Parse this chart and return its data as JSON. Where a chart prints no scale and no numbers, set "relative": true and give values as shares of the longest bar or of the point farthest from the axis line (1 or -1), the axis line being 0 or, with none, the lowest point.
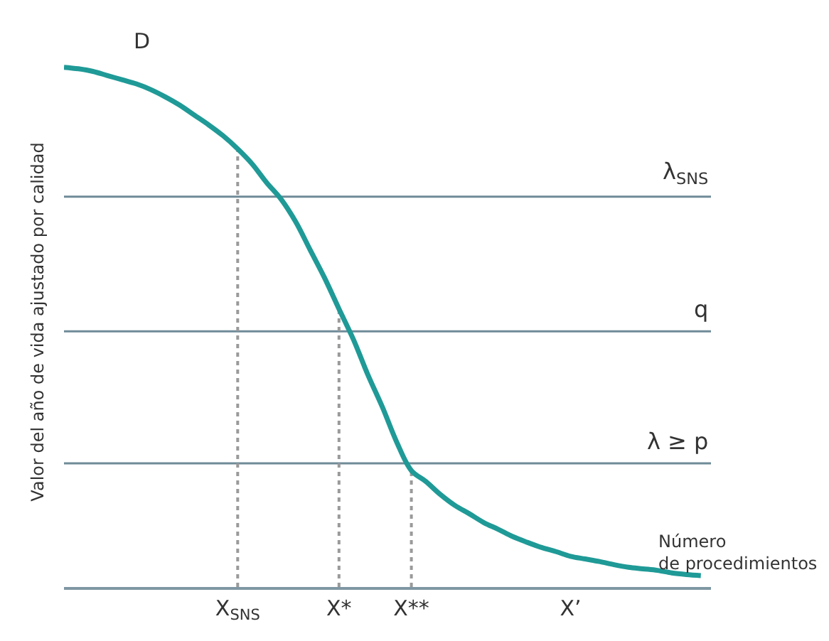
{
  "chart_data": {
    "type": "line",
    "relative": true,
    "xlabel": "Número\nde procedimientos",
    "ylabel": "Valor del año de vida ajustado por calidad",
    "annotations": [
      "D"
    ],
    "categories": [
      null,
      null,
      null,
      null,
      null,
      null,
      null,
      null,
      null,
      null,
      null,
      null,
      "X$_{SNS}$",
      null,
      null,
      null,
      null,
      null,
      null,
      "X*",
      null,
      null,
      null,
      null,
      "X**",
      null,
      null,
      null,
      null,
      null,
      null,
      null,
      null,
      null,
      null,
      "X’",
      null,
      null,
      null,
      null,
      null,
      null,
      null,
      null,
      null
    ],
    "series": [
      {
        "color": "#1f9a97",
        "values": [
          1.0,
          0.997,
          0.992,
          0.984,
          0.976,
          0.968,
          0.957,
          0.943,
          0.927,
          0.908,
          0.889,
          0.868,
          0.843,
          0.814,
          0.778,
          0.746,
          0.703,
          0.649,
          0.595,
          0.535,
          0.476,
          0.408,
          0.346,
          0.278,
          0.224,
          0.203,
          0.178,
          0.157,
          0.141,
          0.124,
          0.111,
          0.097,
          0.086,
          0.076,
          0.068,
          0.059,
          0.054,
          0.049,
          0.043,
          0.038,
          0.035,
          0.032,
          0.027,
          0.024,
          0.022
        ]
      }
    ],
    "ref_lines": [
      {
        "axis": "y",
        "value": 0.751,
        "label": "λ$_{SNS}$",
        "color": "#6f8b98"
      },
      {
        "axis": "y",
        "value": 0.492,
        "label": "q",
        "color": "#6f8b98"
      },
      {
        "axis": "y",
        "value": 0.238,
        "label": "λ ≥ p",
        "color": "#6f8b98"
      },
      {
        "axis": "x",
        "value": "X$_{SNS}$",
        "color": "#9a9a9a",
        "line_style": "dotted"
      },
      {
        "axis": "x",
        "value": "X*",
        "color": "#9a9a9a",
        "line_style": "dotted"
      },
      {
        "axis": "x",
        "value": "X**",
        "color": "#9a9a9a",
        "line_style": "dotted"
      }
    ],
    "grid": false,
    "line_style": "solid",
    "marker": "none"
  }
}
